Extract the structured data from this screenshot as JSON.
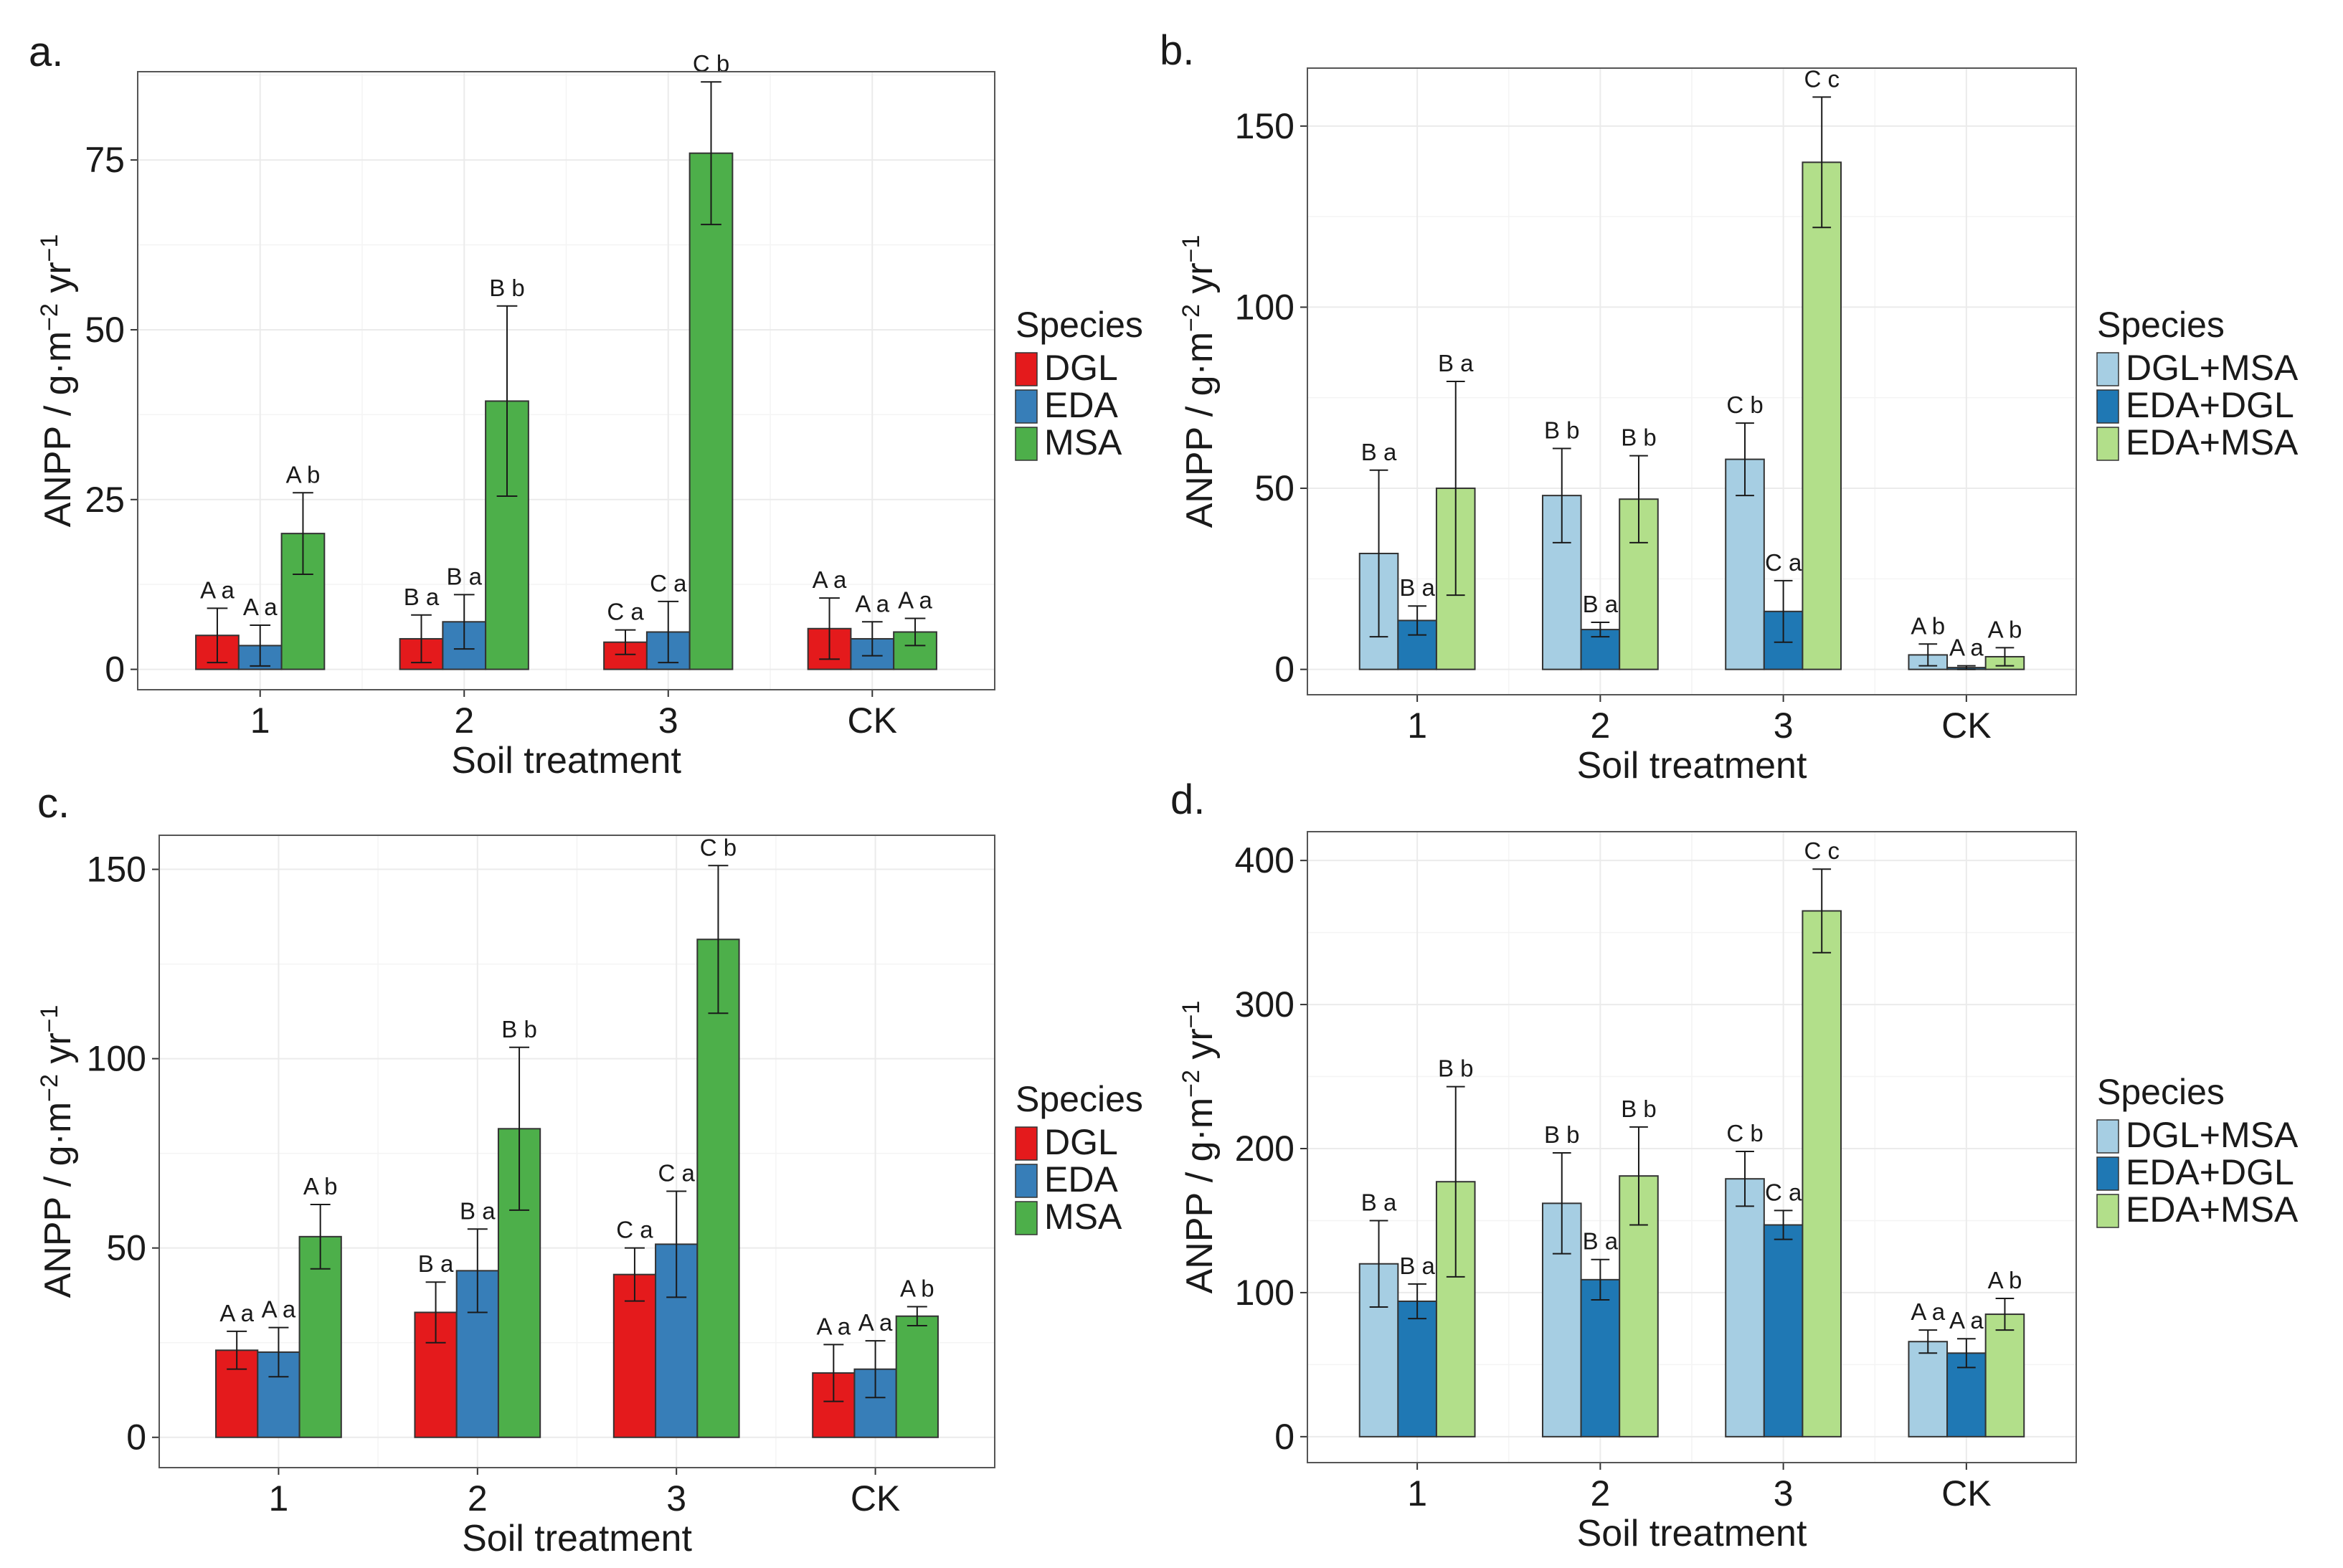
{
  "chart_data": [
    {
      "panel": "a.",
      "type": "bar",
      "xlabel": "Soil treatment",
      "ylabel_main": "ANPP  / g·m",
      "ylabel_sup1": "−2",
      "ylabel_mid": " yr",
      "ylabel_sup2": "−1",
      "ylim": [
        -3,
        88
      ],
      "yticks": [
        0,
        25,
        50,
        75
      ],
      "categories": [
        "1",
        "2",
        "3",
        "CK"
      ],
      "legend_title": "Species",
      "series": [
        {
          "name": "DGL",
          "color": "#e41a1c",
          "values": [
            5,
            4.5,
            4,
            6
          ],
          "errors": [
            4,
            3.5,
            1.8,
            4.5
          ],
          "labels": [
            "A a",
            "B a",
            "C a",
            "A a"
          ]
        },
        {
          "name": "EDA",
          "color": "#377eb8",
          "values": [
            3.5,
            7,
            5.5,
            4.5
          ],
          "errors": [
            3,
            4,
            4.5,
            2.5
          ],
          "labels": [
            "A a",
            "B a",
            "C a",
            "A a"
          ]
        },
        {
          "name": "MSA",
          "color": "#4daf4a",
          "values": [
            20,
            39.5,
            76,
            5.5
          ],
          "errors": [
            6,
            14,
            10.5,
            2
          ],
          "labels": [
            "A b",
            "B b",
            "C b",
            "A a"
          ]
        }
      ]
    },
    {
      "panel": "b.",
      "type": "bar",
      "xlabel": "Soil treatment",
      "ylabel_main": "ANPP  / g·m",
      "ylabel_sup1": "−2",
      "ylabel_mid": " yr",
      "ylabel_sup2": "−1",
      "ylim": [
        -7,
        166
      ],
      "yticks": [
        0,
        50,
        100,
        150
      ],
      "categories": [
        "1",
        "2",
        "3",
        "CK"
      ],
      "legend_title": "Species",
      "series": [
        {
          "name": "DGL+MSA",
          "color": "#a6cee3",
          "values": [
            32,
            48,
            58,
            4
          ],
          "errors": [
            23,
            13,
            10,
            3
          ],
          "labels": [
            "B a",
            "B b",
            "C b",
            "A b"
          ]
        },
        {
          "name": "EDA+DGL",
          "color": "#1f78b4",
          "values": [
            13.5,
            11,
            16,
            0.5
          ],
          "errors": [
            4,
            2,
            8.5,
            0.5
          ],
          "labels": [
            "B a",
            "B a",
            "C a",
            "A a"
          ]
        },
        {
          "name": "EDA+MSA",
          "color": "#b2df8a",
          "values": [
            50,
            47,
            140,
            3.5
          ],
          "errors": [
            29.5,
            12,
            18,
            2.5
          ],
          "labels": [
            "B a",
            "B b",
            "C c",
            "A b"
          ]
        }
      ]
    },
    {
      "panel": "c.",
      "type": "bar",
      "xlabel": "Soil treatment",
      "ylabel_main": "ANPP  / g·m",
      "ylabel_sup1": "−2",
      "ylabel_mid": " yr",
      "ylabel_sup2": "−1",
      "ylim": [
        -8,
        159
      ],
      "yticks": [
        0,
        50,
        100,
        150
      ],
      "categories": [
        "1",
        "2",
        "3",
        "CK"
      ],
      "legend_title": "Species",
      "series": [
        {
          "name": "DGL",
          "color": "#e41a1c",
          "values": [
            23,
            33,
            43,
            17
          ],
          "errors": [
            5,
            8,
            7,
            7.5
          ],
          "labels": [
            "A a",
            "B a",
            "C a",
            "A a"
          ]
        },
        {
          "name": "EDA",
          "color": "#377eb8",
          "values": [
            22.5,
            44,
            51,
            18
          ],
          "errors": [
            6.5,
            11,
            14,
            7.5
          ],
          "labels": [
            "A a",
            "B a",
            "C a",
            "A a"
          ]
        },
        {
          "name": "MSA",
          "color": "#4daf4a",
          "values": [
            53,
            81.5,
            131.5,
            32
          ],
          "errors": [
            8.5,
            21.5,
            19.5,
            2.5
          ],
          "labels": [
            "A b",
            "B b",
            "C b",
            "A b"
          ]
        }
      ]
    },
    {
      "panel": "d.",
      "type": "bar",
      "xlabel": "Soil treatment",
      "ylabel_main": "ANPP  / g·m",
      "ylabel_sup1": "−2",
      "ylabel_mid": " yr",
      "ylabel_sup2": "−1",
      "ylim": [
        -18,
        420
      ],
      "yticks": [
        0,
        100,
        200,
        300,
        400
      ],
      "categories": [
        "1",
        "2",
        "3",
        "CK"
      ],
      "legend_title": "Species",
      "series": [
        {
          "name": "DGL+MSA",
          "color": "#a6cee3",
          "values": [
            120,
            162,
            179,
            66
          ],
          "errors": [
            30,
            35,
            19,
            8
          ],
          "labels": [
            "B a",
            "B b",
            "C b",
            "A a"
          ]
        },
        {
          "name": "EDA+DGL",
          "color": "#1f78b4",
          "values": [
            94,
            109,
            147,
            58
          ],
          "errors": [
            12,
            14,
            10,
            10
          ],
          "labels": [
            "B a",
            "B a",
            "C a",
            "A a"
          ]
        },
        {
          "name": "EDA+MSA",
          "color": "#b2df8a",
          "values": [
            177,
            181,
            365,
            85
          ],
          "errors": [
            66,
            34,
            29,
            11
          ],
          "labels": [
            "B b",
            "B b",
            "C c",
            "A b"
          ]
        }
      ]
    }
  ]
}
